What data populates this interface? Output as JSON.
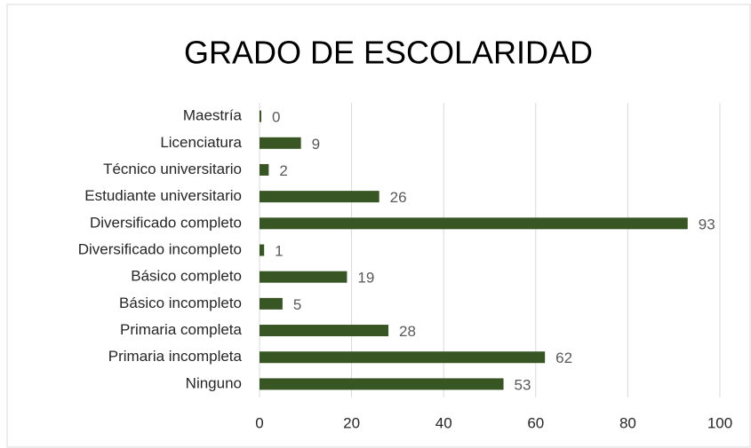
{
  "chart_data": {
    "type": "bar",
    "orientation": "horizontal",
    "title": "GRADO DE ESCOLARIDAD",
    "categories": [
      "Maestría",
      "Licenciatura",
      "Técnico universitario",
      "Estudiante universitario",
      "Diversificado completo",
      "Diversificado incompleto",
      "Básico completo",
      "Básico incompleto",
      "Primaria completa",
      "Primaria incompleta",
      "Ninguno"
    ],
    "values": [
      0,
      9,
      2,
      26,
      93,
      1,
      19,
      5,
      28,
      62,
      53
    ],
    "color": "#375623",
    "xlim": [
      0,
      100
    ],
    "xticks": [
      0,
      20,
      40,
      60,
      80,
      100
    ],
    "grid": true
  }
}
